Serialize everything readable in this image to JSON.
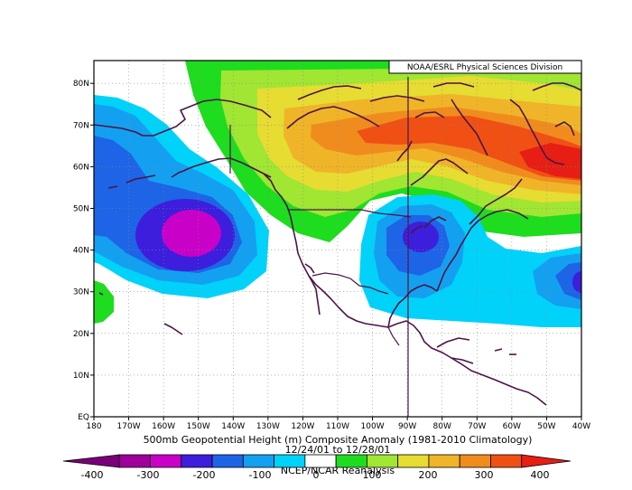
{
  "credit": "NOAA/ESRL Physical Sciences Division",
  "caption": {
    "line1": "500mb Geopotential Height (m) Composite Anomaly (1981-2010 Climatology)",
    "line2": "12/24/01 to 12/28/01",
    "line3": "NCEP/NCAR Reanalysis"
  },
  "lon_labels": [
    "180",
    "170W",
    "160W",
    "150W",
    "140W",
    "130W",
    "120W",
    "110W",
    "100W",
    "90W",
    "80W",
    "70W",
    "60W",
    "50W",
    "40W"
  ],
  "lat_labels": [
    "EQ",
    "10N",
    "20N",
    "30N",
    "40N",
    "50N",
    "60N",
    "70N",
    "80N"
  ],
  "colorbar": {
    "labels": [
      "-400",
      "-300",
      "-200",
      "-100",
      "0",
      "100",
      "200",
      "300",
      "400"
    ],
    "colors": [
      "#780078",
      "#9e0099",
      "#c800c8",
      "#3c1edc",
      "#1e64e6",
      "#14a0f0",
      "#00d2fa",
      "#ffffff",
      "#1edc1e",
      "#a0e632",
      "#e6dc32",
      "#f0b428",
      "#f08c1e",
      "#f05014",
      "#e61e14"
    ]
  },
  "colors": {
    "coast": "#4a1548",
    "border": "#4a1548",
    "grid": "#888888"
  }
}
